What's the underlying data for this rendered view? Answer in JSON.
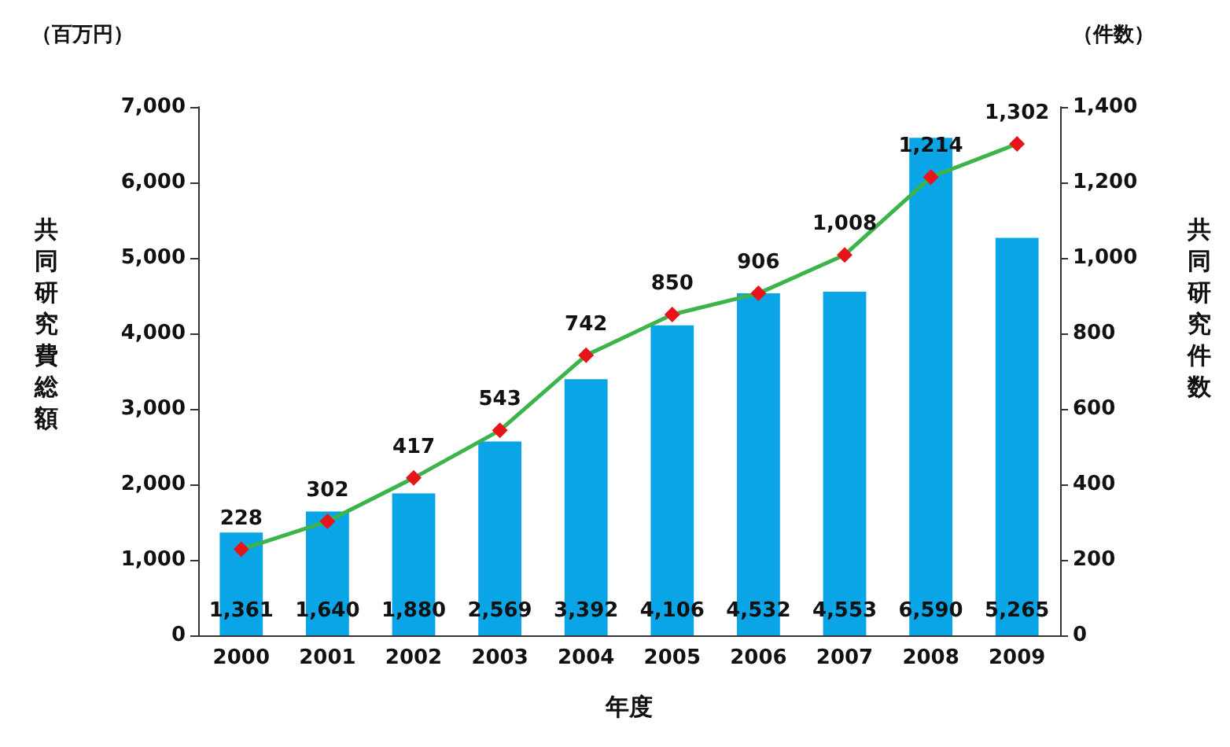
{
  "chart_data": {
    "type": "bar",
    "xlabel": "年度",
    "ylabel": "共同研究費総額",
    "y2label": "共同研究件数",
    "annotations": [
      "（百万円）",
      "（件数）"
    ],
    "categories": [
      "2000",
      "2001",
      "2002",
      "2003",
      "2004",
      "2005",
      "2006",
      "2007",
      "2008",
      "2009"
    ],
    "series": [
      {
        "color": "#0aa5e6",
        "values": [
          1361,
          1640,
          1880,
          2569,
          3392,
          4106,
          4532,
          4553,
          6590,
          5265
        ],
        "value_labels": [
          "1,361",
          "1,640",
          "1,880",
          "2,569",
          "3,392",
          "4,106",
          "4,532",
          "4,553",
          "6,590",
          "5,265"
        ]
      },
      {
        "type": "line",
        "axis": "y2",
        "color": "#3cb44b",
        "colors": [
          "#e8141c",
          "#e8141c",
          "#e8141c",
          "#e8141c",
          "#e8141c",
          "#e8141c",
          "#e8141c",
          "#e8141c",
          "#e8141c",
          "#e8141c"
        ],
        "values": [
          228,
          302,
          417,
          543,
          742,
          850,
          906,
          1008,
          1214,
          1302
        ],
        "value_labels": [
          "228",
          "302",
          "417",
          "543",
          "742",
          "850",
          "906",
          "1,008",
          "1,214",
          "1,302"
        ]
      }
    ],
    "ylim": [
      0,
      7000
    ],
    "yticks": [
      0,
      {
        "value": 1000,
        "label": "1,000"
      },
      {
        "value": 2000,
        "label": "2,000"
      },
      {
        "value": 3000,
        "label": "3,000"
      },
      {
        "value": 4000,
        "label": "4,000"
      },
      {
        "value": 5000,
        "label": "5,000"
      },
      {
        "value": 6000,
        "label": "6,000"
      },
      {
        "value": 7000,
        "label": "7,000"
      }
    ],
    "y2lim": [
      0,
      1400
    ],
    "y2ticks": [
      0,
      200,
      400,
      600,
      800,
      {
        "value": 1000,
        "label": "1,000"
      },
      {
        "value": 1200,
        "label": "1,200"
      },
      {
        "value": 1400,
        "label": "1,400"
      }
    ],
    "grid": false,
    "marker": "diamond"
  }
}
